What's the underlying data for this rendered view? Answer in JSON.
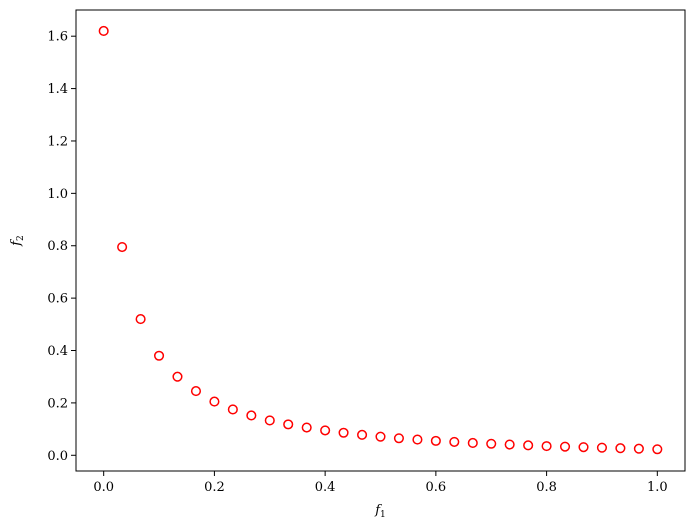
{
  "chart_data": {
    "type": "scatter",
    "title": "",
    "xlabel": "f",
    "xlabel_sub": "1",
    "ylabel": "f",
    "ylabel_sub": "2",
    "xlim": [
      -0.05,
      1.05
    ],
    "ylim": [
      -0.06,
      1.7
    ],
    "xticks": [
      0.0,
      0.2,
      0.4,
      0.6,
      0.8,
      1.0
    ],
    "xtick_labels": [
      "0.0",
      "0.2",
      "0.4",
      "0.6",
      "0.8",
      "1.0"
    ],
    "yticks": [
      0.0,
      0.2,
      0.4,
      0.6,
      0.8,
      1.0,
      1.2,
      1.4,
      1.6
    ],
    "ytick_labels": [
      "0.0",
      "0.2",
      "0.4",
      "0.6",
      "0.8",
      "1.0",
      "1.2",
      "1.4",
      "1.6"
    ],
    "grid": false,
    "marker": "open-circle",
    "marker_color": "#ff0000",
    "series": [
      {
        "x": [
          0.0,
          0.0333,
          0.0667,
          0.1,
          0.1333,
          0.1667,
          0.2,
          0.2333,
          0.2667,
          0.3,
          0.3333,
          0.3667,
          0.4,
          0.4333,
          0.4667,
          0.5,
          0.5333,
          0.5667,
          0.6,
          0.6333,
          0.6667,
          0.7,
          0.7333,
          0.7667,
          0.8,
          0.8333,
          0.8667,
          0.9,
          0.9333,
          0.9667,
          1.0
        ],
        "y": [
          1.62,
          0.795,
          0.52,
          0.38,
          0.3,
          0.245,
          0.205,
          0.175,
          0.152,
          0.133,
          0.118,
          0.106,
          0.095,
          0.086,
          0.078,
          0.071,
          0.065,
          0.06,
          0.055,
          0.051,
          0.047,
          0.044,
          0.041,
          0.038,
          0.035,
          0.033,
          0.031,
          0.029,
          0.027,
          0.025,
          0.023
        ]
      }
    ]
  }
}
